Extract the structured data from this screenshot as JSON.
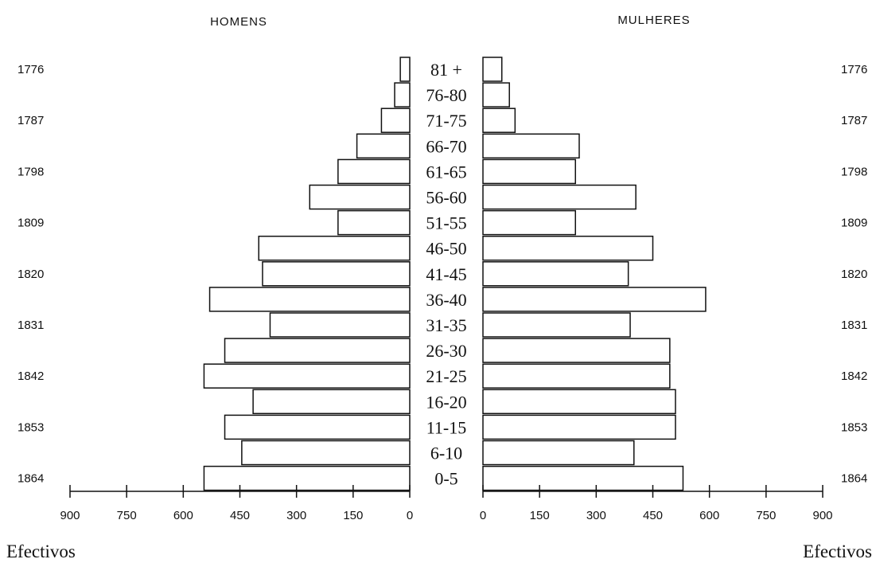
{
  "chart_data": {
    "type": "bar",
    "left_title": "HOMENS",
    "right_title": "MULHERES",
    "categories": [
      "81 +",
      "76-80",
      "71-75",
      "66-70",
      "61-65",
      "56-60",
      "51-55",
      "46-50",
      "41-45",
      "36-40",
      "31-35",
      "26-30",
      "21-25",
      "16-20",
      "11-15",
      "6-10",
      "0-5"
    ],
    "years": [
      "1776",
      "1787",
      "1798",
      "1809",
      "1820",
      "1831",
      "1842",
      "1853",
      "1864"
    ],
    "series": [
      {
        "name": "HOMENS",
        "values": [
          25,
          40,
          75,
          140,
          190,
          265,
          190,
          400,
          390,
          530,
          370,
          490,
          545,
          415,
          490,
          445,
          545
        ]
      },
      {
        "name": "MULHERES",
        "values": [
          50,
          70,
          85,
          255,
          245,
          405,
          245,
          450,
          385,
          590,
          390,
          495,
          495,
          510,
          510,
          400,
          530
        ]
      }
    ],
    "xticks": [
      "900",
      "750",
      "600",
      "450",
      "300",
      "150",
      "0"
    ],
    "xticks_right": [
      "0",
      "150",
      "300",
      "450",
      "600",
      "750",
      "900"
    ],
    "xlim": [
      0,
      900
    ],
    "xlabel": "Efectivos",
    "xlabel_right": "Efectivos"
  }
}
